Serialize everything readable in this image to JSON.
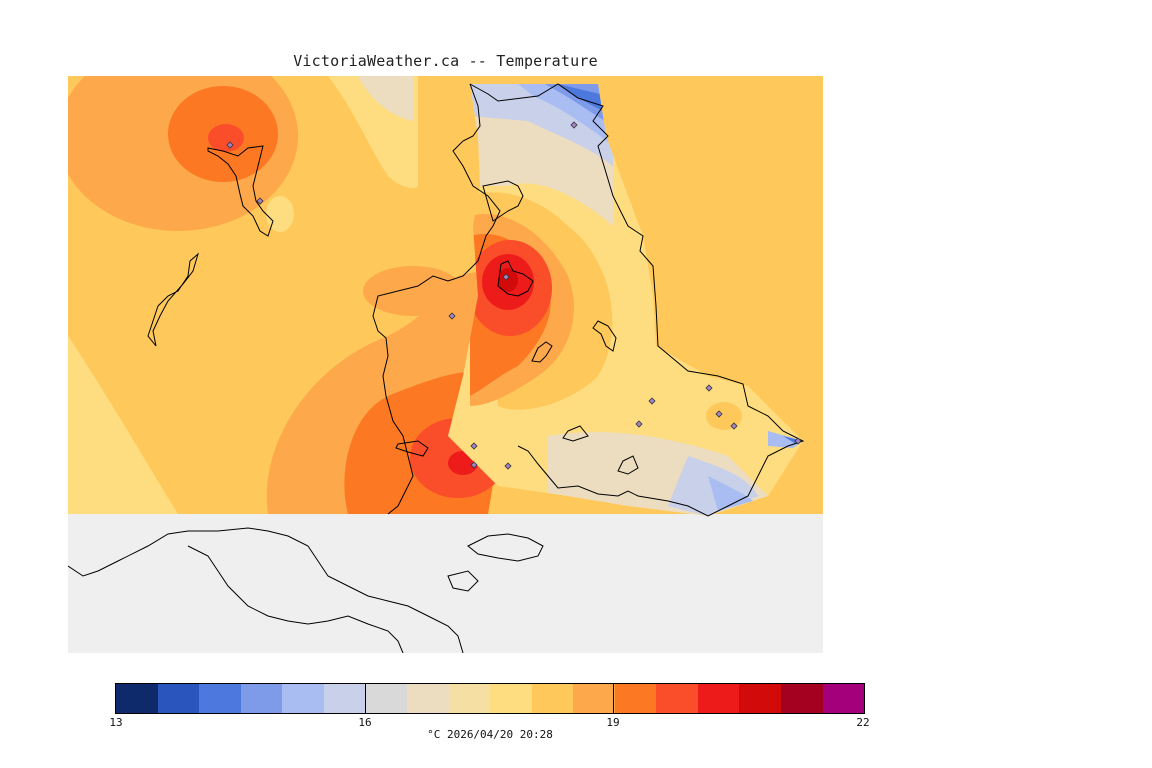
{
  "title": "VictoriaWeather.ca -- Temperature",
  "legend": {
    "ticks": [
      "13",
      "16",
      "19",
      "22"
    ],
    "footer": "°C  2026/04/20 20:28",
    "colors": [
      "#0e2a6b",
      "#2a55bd",
      "#4d78dd",
      "#7d9be8",
      "#a9bdf3",
      "#c8d0ea",
      "#d9d9d9",
      "#ecdcc0",
      "#f5dfa2",
      "#fedd80",
      "#fec95a",
      "#fda84b",
      "#fc7823",
      "#fa4e2a",
      "#ee1b1b",
      "#d20a0a",
      "#a4001f",
      "#a4007b"
    ]
  },
  "stations": [
    "station",
    "station",
    "station",
    "station",
    "station",
    "station",
    "station",
    "station",
    "station",
    "station",
    "station",
    "station",
    "station",
    "station"
  ]
}
